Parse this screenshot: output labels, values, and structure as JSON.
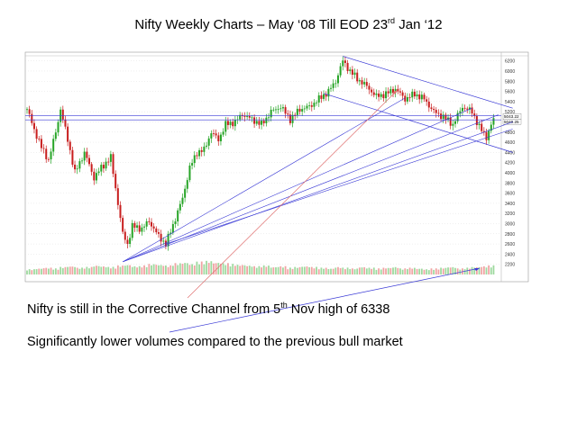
{
  "slide": {
    "title": {
      "part1": "Nifty Weekly Charts – May ‘08 Till EOD 23",
      "sup": "rd",
      "part2": " Jan ‘12"
    },
    "notes": [
      {
        "part1": "Nifty is still in the Corrective Channel from 5",
        "sup": "th",
        "part2": " Nov high of 6338"
      },
      {
        "part1": "Significantly lower volumes compared to the previous bull market",
        "sup": "",
        "part2": ""
      }
    ]
  },
  "colors": {
    "up": "#26a426",
    "down": "#c81e1e",
    "volume_up": "#9ed99e",
    "volume_down": "#f0a3a3",
    "trendline": "#3a3ad6",
    "arrow": "#e07070",
    "grid": "#d8d8d8"
  },
  "chart_data": {
    "type": "candlestick",
    "title": "Nifty Weekly Charts – May ‘08 Till EOD 23rd Jan ‘12",
    "ylim": [
      2000,
      6300
    ],
    "y_ticks": [
      "6200",
      "6000",
      "5800",
      "5600",
      "5400",
      "5200",
      "5000",
      "4800",
      "4600",
      "4400",
      "4200",
      "4000",
      "3800",
      "3600",
      "3400",
      "3200",
      "3000",
      "2800",
      "2600",
      "2400",
      "2200"
    ],
    "price_labels": [
      "5040.25",
      "5043.22"
    ],
    "points": [
      {
        "week": 0,
        "close": 5250
      },
      {
        "week": 3,
        "close": 4850
      },
      {
        "week": 6,
        "close": 4500
      },
      {
        "week": 9,
        "close": 4250
      },
      {
        "week": 12,
        "close": 4800
      },
      {
        "week": 14,
        "close": 5250
      },
      {
        "week": 17,
        "close": 4650
      },
      {
        "week": 20,
        "close": 4000
      },
      {
        "week": 24,
        "close": 4400
      },
      {
        "week": 28,
        "close": 3900
      },
      {
        "week": 31,
        "close": 4100
      },
      {
        "week": 35,
        "close": 4300
      },
      {
        "week": 38,
        "close": 3400
      },
      {
        "week": 40,
        "close": 2800
      },
      {
        "week": 42,
        "close": 2600
      },
      {
        "week": 44,
        "close": 2950
      },
      {
        "week": 48,
        "close": 2900
      },
      {
        "week": 51,
        "close": 3050
      },
      {
        "week": 55,
        "close": 2750
      },
      {
        "week": 58,
        "close": 2600
      },
      {
        "week": 62,
        "close": 3100
      },
      {
        "week": 65,
        "close": 3500
      },
      {
        "week": 68,
        "close": 4100
      },
      {
        "week": 71,
        "close": 4400
      },
      {
        "week": 74,
        "close": 4450
      },
      {
        "week": 77,
        "close": 4800
      },
      {
        "week": 80,
        "close": 4650
      },
      {
        "week": 83,
        "close": 4950
      },
      {
        "week": 87,
        "close": 5000
      },
      {
        "week": 90,
        "close": 5150
      },
      {
        "week": 94,
        "close": 5050
      },
      {
        "week": 98,
        "close": 4950
      },
      {
        "week": 102,
        "close": 5200
      },
      {
        "week": 106,
        "close": 5300
      },
      {
        "week": 110,
        "close": 5050
      },
      {
        "week": 114,
        "close": 5250
      },
      {
        "week": 118,
        "close": 5300
      },
      {
        "week": 122,
        "close": 5450
      },
      {
        "week": 126,
        "close": 5600
      },
      {
        "week": 129,
        "close": 5800
      },
      {
        "week": 132,
        "close": 6200
      },
      {
        "week": 135,
        "close": 6000
      },
      {
        "week": 138,
        "close": 5850
      },
      {
        "week": 142,
        "close": 5700
      },
      {
        "week": 146,
        "close": 5500
      },
      {
        "week": 150,
        "close": 5550
      },
      {
        "week": 154,
        "close": 5650
      },
      {
        "week": 158,
        "close": 5450
      },
      {
        "week": 162,
        "close": 5550
      },
      {
        "week": 166,
        "close": 5450
      },
      {
        "week": 170,
        "close": 5200
      },
      {
        "week": 174,
        "close": 5100
      },
      {
        "week": 178,
        "close": 4950
      },
      {
        "week": 182,
        "close": 5300
      },
      {
        "week": 186,
        "close": 5200
      },
      {
        "week": 189,
        "close": 4900
      },
      {
        "week": 192,
        "close": 4700
      },
      {
        "week": 195,
        "close": 5050
      }
    ],
    "volume_relative": [
      0.35,
      0.4,
      0.45,
      0.4,
      0.5,
      0.55,
      0.45,
      0.5,
      0.6,
      0.55,
      0.5,
      0.6,
      0.65,
      0.55,
      0.6,
      0.7,
      0.65,
      0.6,
      0.75,
      0.8,
      0.7,
      0.85,
      0.9,
      0.8,
      0.75,
      0.7,
      0.65,
      0.6,
      0.55,
      0.6,
      0.5,
      0.55,
      0.45,
      0.5,
      0.55,
      0.5,
      0.45,
      0.4,
      0.5,
      0.45,
      0.4,
      0.5,
      0.45,
      0.4,
      0.45,
      0.5,
      0.4,
      0.45,
      0.4,
      0.35,
      0.4,
      0.45,
      0.5,
      0.4,
      0.45,
      0.5,
      0.55,
      0.6
    ],
    "horizontal_levels": [
      5120,
      5040
    ],
    "channel_lines": [
      {
        "from": {
          "week": 132,
          "value": 6290
        },
        "to": {
          "week": 203,
          "value": 5270
        }
      },
      {
        "from": {
          "week": 124,
          "value": 5560
        },
        "to": {
          "week": 203,
          "value": 4400
        }
      }
    ],
    "fan_lines_from_low": [
      {
        "to": {
          "week": 158,
          "value": 5470
        }
      },
      {
        "to": {
          "week": 186,
          "value": 5270
        }
      },
      {
        "to": {
          "week": 197,
          "value": 5140
        }
      },
      {
        "to": {
          "week": 203,
          "value": 5000
        }
      }
    ],
    "rising_support": {
      "from": {
        "week": 58,
        "value": 2600
      },
      "to": {
        "week": 203,
        "value": 4860
      }
    },
    "annotations": [
      "Corrective Channel from 5th Nov high of 6338",
      "lower volumes"
    ]
  }
}
